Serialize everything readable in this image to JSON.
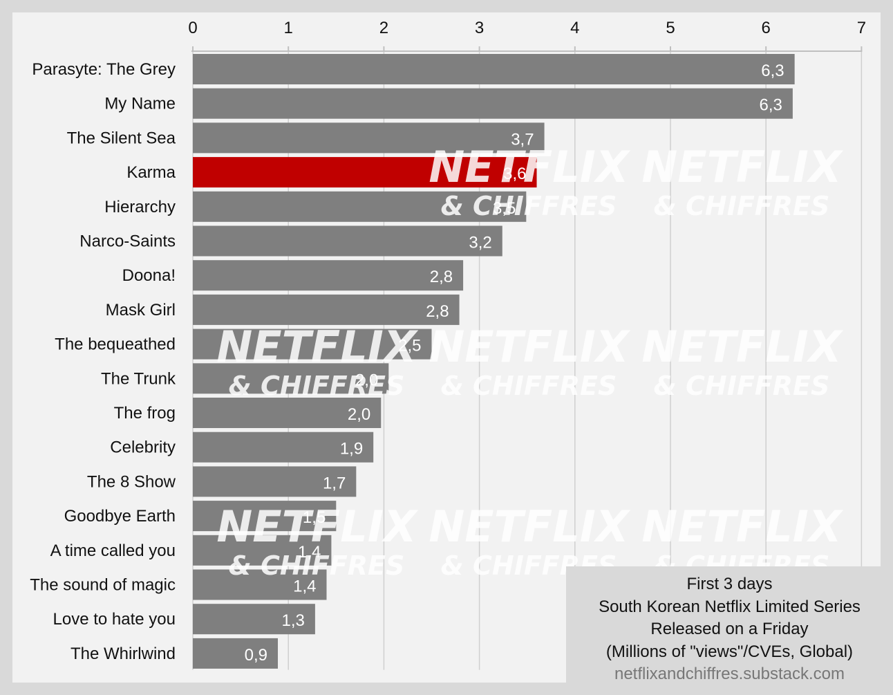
{
  "chart_data": {
    "type": "bar",
    "orientation": "horizontal",
    "categories": [
      "Parasyte: The Grey",
      "My Name",
      "The Silent Sea",
      "Karma",
      "Hierarchy",
      "Narco-Saints",
      "Doona!",
      "Mask Girl",
      "The bequeathed",
      "The Trunk",
      "The frog",
      "Celebrity",
      "The 8 Show",
      "Goodbye Earth",
      "A time called you",
      "The sound of magic",
      "Love to hate you",
      "The Whirlwind"
    ],
    "values": [
      6.3,
      6.28,
      3.68,
      3.6,
      3.49,
      3.24,
      2.83,
      2.79,
      2.5,
      2.05,
      1.97,
      1.89,
      1.71,
      1.5,
      1.45,
      1.4,
      1.28,
      0.89
    ],
    "value_labels": [
      "6,3",
      "6,3",
      "3,7",
      "3,6",
      "3,5",
      "3,2",
      "2,8",
      "2,8",
      "2,5",
      "2,0",
      "2,0",
      "1,9",
      "1,7",
      "1,5",
      "1,4",
      "1,4",
      "1,3",
      "0,9"
    ],
    "highlight": "Karma",
    "xlim": [
      0,
      7
    ],
    "xticks": [
      "0",
      "1",
      "2",
      "3",
      "4",
      "5",
      "6",
      "7"
    ],
    "xaxis_position": "top",
    "grid": true,
    "colors": {
      "bar": "#7f7f7f",
      "highlight": "#c00000",
      "grid": "#cfcfcf",
      "background": "#f2f2f2"
    },
    "watermark": {
      "line1": "NETFLIX",
      "line2": "& CHIFFRES"
    }
  },
  "info_box": {
    "line1": "First 3 days",
    "line2": "South Korean Netflix Limited Series",
    "line3": "Released on a Friday",
    "line4": "(Millions of \"views\"/CVEs, Global)",
    "source": "netflixandchiffres.substack.com"
  }
}
